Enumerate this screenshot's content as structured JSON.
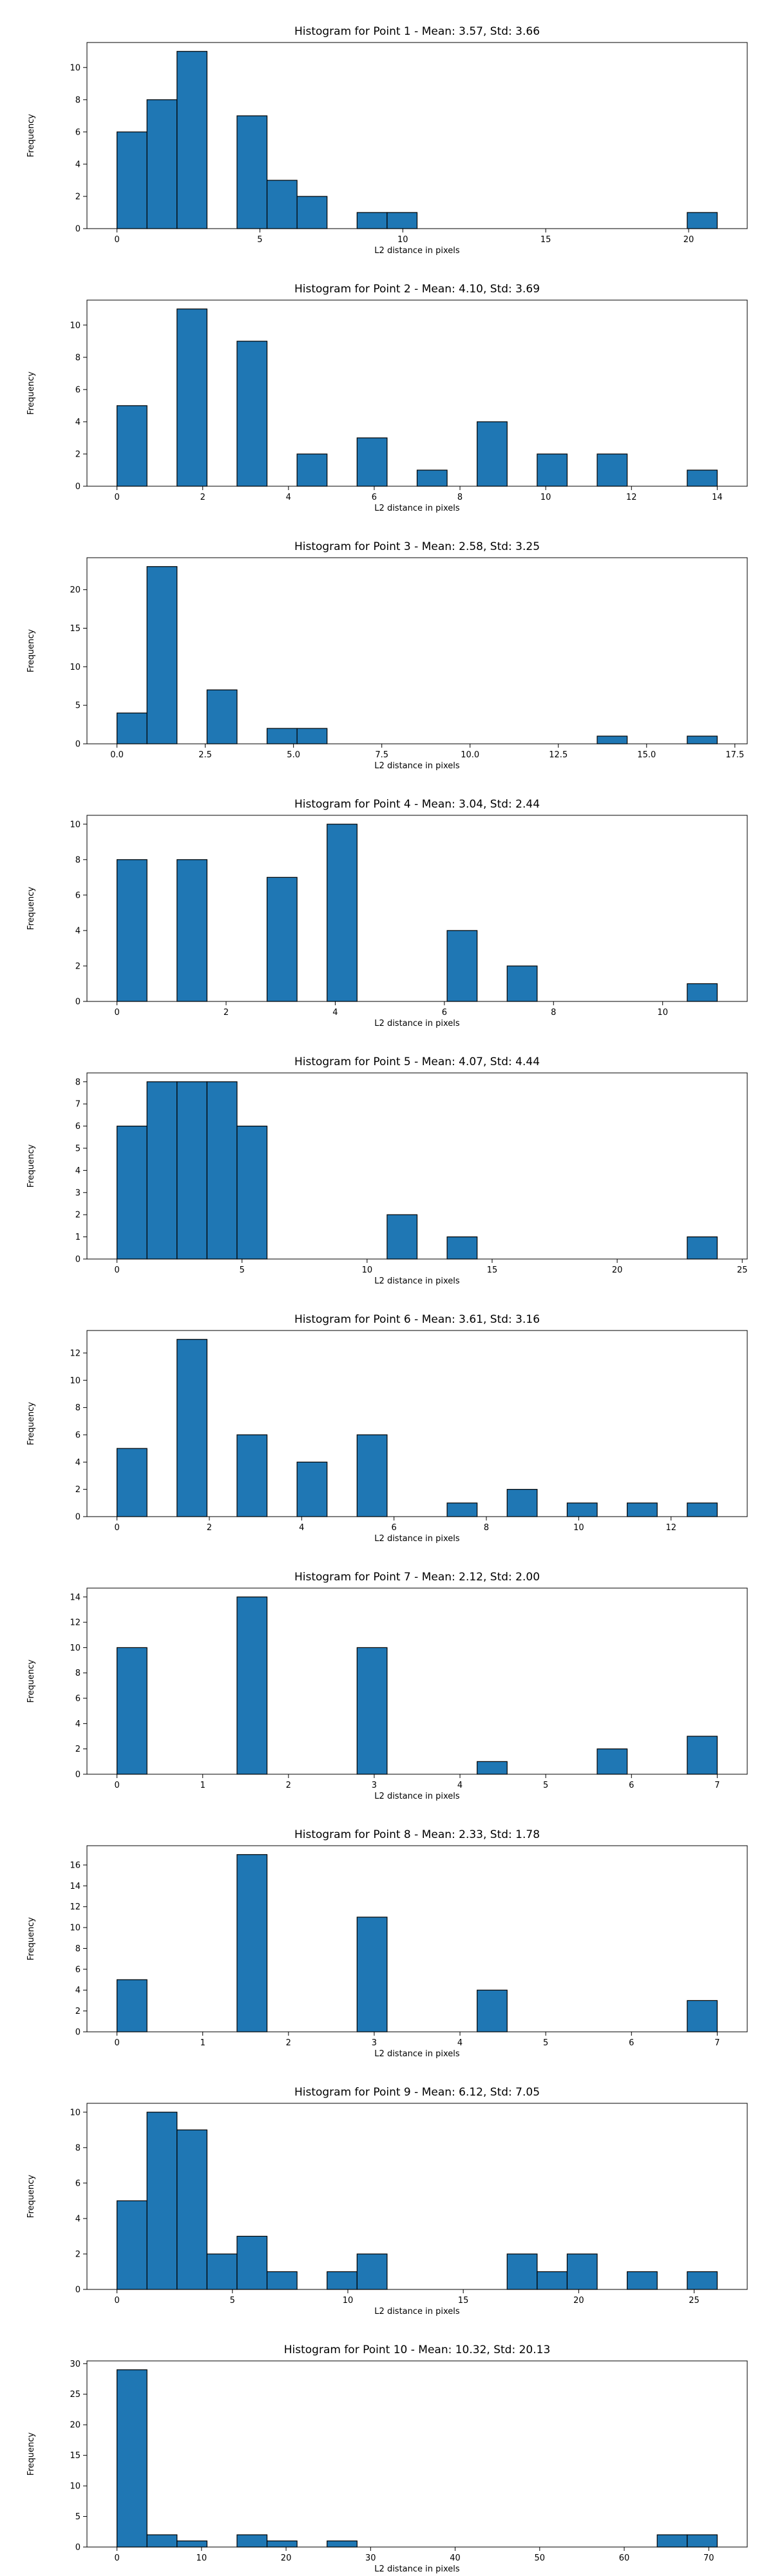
{
  "chart_data": [
    {
      "type": "bar",
      "title": "Histogram for Point 1 - Mean: 3.57, Std: 3.66",
      "xlabel": "L2 distance in pixels",
      "ylabel": "Frequency",
      "bar_color": "#1f77b4",
      "edge_color": "#000000",
      "xlim": [
        -1.05,
        22.05
      ],
      "ylim": [
        0,
        11.55
      ],
      "xticks": [
        0,
        5,
        10,
        15,
        20
      ],
      "xtick_labels": [
        "0",
        "5",
        "10",
        "15",
        "20"
      ],
      "yticks": [
        0,
        2,
        4,
        6,
        8,
        10
      ],
      "ytick_labels": [
        "0",
        "2",
        "4",
        "6",
        "8",
        "10"
      ],
      "bin_edges": [
        0,
        1.05,
        2.1,
        3.15,
        4.2,
        5.25,
        6.3,
        7.35,
        8.4,
        9.45,
        10.5,
        11.55,
        12.6,
        13.65,
        14.7,
        15.75,
        16.8,
        17.85,
        18.9,
        19.95,
        21.0
      ],
      "counts": [
        6,
        8,
        11,
        0,
        7,
        3,
        2,
        0,
        1,
        1,
        0,
        0,
        0,
        0,
        0,
        0,
        0,
        0,
        0,
        1
      ]
    },
    {
      "type": "bar",
      "title": "Histogram for Point 2 - Mean: 4.10, Std: 3.69",
      "xlabel": "L2 distance in pixels",
      "ylabel": "Frequency",
      "bar_color": "#1f77b4",
      "edge_color": "#000000",
      "xlim": [
        -0.7,
        14.7
      ],
      "ylim": [
        0,
        11.55
      ],
      "xticks": [
        0,
        2,
        4,
        6,
        8,
        10,
        12,
        14
      ],
      "xtick_labels": [
        "0",
        "2",
        "4",
        "6",
        "8",
        "10",
        "12",
        "14"
      ],
      "yticks": [
        0,
        2,
        4,
        6,
        8,
        10
      ],
      "ytick_labels": [
        "0",
        "2",
        "4",
        "6",
        "8",
        "10"
      ],
      "bin_edges": [
        0,
        0.7,
        1.4,
        2.1,
        2.8,
        3.5,
        4.2,
        4.9,
        5.6,
        6.3,
        7.0,
        7.7,
        8.4,
        9.1,
        9.8,
        10.5,
        11.2,
        11.9,
        12.6,
        13.3,
        14.0
      ],
      "counts": [
        5,
        0,
        11,
        0,
        9,
        0,
        2,
        0,
        3,
        0,
        1,
        0,
        4,
        0,
        2,
        0,
        2,
        0,
        0,
        1
      ]
    },
    {
      "type": "bar",
      "title": "Histogram for Point 3 - Mean: 2.58, Std: 3.25",
      "xlabel": "L2 distance in pixels",
      "ylabel": "Frequency",
      "bar_color": "#1f77b4",
      "edge_color": "#000000",
      "xlim": [
        -0.85,
        17.85
      ],
      "ylim": [
        0,
        24.15
      ],
      "xticks": [
        0,
        2.5,
        5,
        7.5,
        10,
        12.5,
        15,
        17.5
      ],
      "xtick_labels": [
        "0.0",
        "2.5",
        "5.0",
        "7.5",
        "10.0",
        "12.5",
        "15.0",
        "17.5"
      ],
      "yticks": [
        0,
        5,
        10,
        15,
        20
      ],
      "ytick_labels": [
        "0",
        "5",
        "10",
        "15",
        "20"
      ],
      "bin_edges": [
        0,
        0.85,
        1.7,
        2.55,
        3.4,
        4.25,
        5.1,
        5.95,
        6.8,
        7.65,
        8.5,
        9.35,
        10.2,
        11.05,
        11.9,
        12.75,
        13.6,
        14.45,
        15.3,
        16.15,
        17.0
      ],
      "counts": [
        4,
        23,
        0,
        7,
        0,
        2,
        2,
        0,
        0,
        0,
        0,
        0,
        0,
        0,
        0,
        0,
        1,
        0,
        0,
        1
      ]
    },
    {
      "type": "bar",
      "title": "Histogram for Point 4 - Mean: 3.04, Std: 2.44",
      "xlabel": "L2 distance in pixels",
      "ylabel": "Frequency",
      "bar_color": "#1f77b4",
      "edge_color": "#000000",
      "xlim": [
        -0.55,
        11.55
      ],
      "ylim": [
        0,
        10.5
      ],
      "xticks": [
        0,
        2,
        4,
        6,
        8,
        10
      ],
      "xtick_labels": [
        "0",
        "2",
        "4",
        "6",
        "8",
        "10"
      ],
      "yticks": [
        0,
        2,
        4,
        6,
        8,
        10
      ],
      "ytick_labels": [
        "0",
        "2",
        "4",
        "6",
        "8",
        "10"
      ],
      "bin_edges": [
        0,
        0.55,
        1.1,
        1.65,
        2.2,
        2.75,
        3.3,
        3.85,
        4.4,
        4.95,
        5.5,
        6.05,
        6.6,
        7.15,
        7.7,
        8.25,
        8.8,
        9.35,
        9.9,
        10.45,
        11.0
      ],
      "counts": [
        8,
        0,
        8,
        0,
        0,
        7,
        0,
        10,
        0,
        0,
        0,
        4,
        0,
        2,
        0,
        0,
        0,
        0,
        0,
        1
      ]
    },
    {
      "type": "bar",
      "title": "Histogram for Point 5 - Mean: 4.07, Std: 4.44",
      "xlabel": "L2 distance in pixels",
      "ylabel": "Frequency",
      "bar_color": "#1f77b4",
      "edge_color": "#000000",
      "xlim": [
        -1.2,
        25.2
      ],
      "ylim": [
        0,
        8.4
      ],
      "xticks": [
        0,
        5,
        10,
        15,
        20,
        25
      ],
      "xtick_labels": [
        "0",
        "5",
        "10",
        "15",
        "20",
        "25"
      ],
      "yticks": [
        0,
        1,
        2,
        3,
        4,
        5,
        6,
        7,
        8
      ],
      "ytick_labels": [
        "0",
        "1",
        "2",
        "3",
        "4",
        "5",
        "6",
        "7",
        "8"
      ],
      "bin_edges": [
        0,
        1.2,
        2.4,
        3.6,
        4.8,
        6.0,
        7.2,
        8.4,
        9.6,
        10.8,
        12.0,
        13.2,
        14.4,
        15.6,
        16.8,
        18.0,
        19.2,
        20.4,
        21.6,
        22.8,
        24.0
      ],
      "counts": [
        6,
        8,
        8,
        8,
        6,
        0,
        0,
        0,
        0,
        2,
        0,
        1,
        0,
        0,
        0,
        0,
        0,
        0,
        0,
        1
      ]
    },
    {
      "type": "bar",
      "title": "Histogram for Point 6 - Mean: 3.61, Std: 3.16",
      "xlabel": "L2 distance in pixels",
      "ylabel": "Frequency",
      "bar_color": "#1f77b4",
      "edge_color": "#000000",
      "xlim": [
        -0.65,
        13.65
      ],
      "ylim": [
        0,
        13.65
      ],
      "xticks": [
        0,
        2,
        4,
        6,
        8,
        10,
        12
      ],
      "xtick_labels": [
        "0",
        "2",
        "4",
        "6",
        "8",
        "10",
        "12"
      ],
      "yticks": [
        0,
        2,
        4,
        6,
        8,
        10,
        12
      ],
      "ytick_labels": [
        "0",
        "2",
        "4",
        "6",
        "8",
        "10",
        "12"
      ],
      "bin_edges": [
        0,
        0.65,
        1.3,
        1.95,
        2.6,
        3.25,
        3.9,
        4.55,
        5.2,
        5.85,
        6.5,
        7.15,
        7.8,
        8.45,
        9.1,
        9.75,
        10.4,
        11.05,
        11.7,
        12.35,
        13.0
      ],
      "counts": [
        5,
        0,
        13,
        0,
        6,
        0,
        4,
        0,
        6,
        0,
        0,
        1,
        0,
        2,
        0,
        1,
        0,
        1,
        0,
        1
      ]
    },
    {
      "type": "bar",
      "title": "Histogram for Point 7 - Mean: 2.12, Std: 2.00",
      "xlabel": "L2 distance in pixels",
      "ylabel": "Frequency",
      "bar_color": "#1f77b4",
      "edge_color": "#000000",
      "xlim": [
        -0.35,
        7.35
      ],
      "ylim": [
        0,
        14.7
      ],
      "xticks": [
        0,
        1,
        2,
        3,
        4,
        5,
        6,
        7
      ],
      "xtick_labels": [
        "0",
        "1",
        "2",
        "3",
        "4",
        "5",
        "6",
        "7"
      ],
      "yticks": [
        0,
        2,
        4,
        6,
        8,
        10,
        12,
        14
      ],
      "ytick_labels": [
        "0",
        "2",
        "4",
        "6",
        "8",
        "10",
        "12",
        "14"
      ],
      "bin_edges": [
        0,
        0.35,
        0.7,
        1.05,
        1.4,
        1.75,
        2.1,
        2.45,
        2.8,
        3.15,
        3.5,
        3.85,
        4.2,
        4.55,
        4.9,
        5.25,
        5.6,
        5.95,
        6.3,
        6.65,
        7.0
      ],
      "counts": [
        10,
        0,
        0,
        0,
        14,
        0,
        0,
        0,
        10,
        0,
        0,
        0,
        1,
        0,
        0,
        0,
        2,
        0,
        0,
        3
      ]
    },
    {
      "type": "bar",
      "title": "Histogram for Point 8 - Mean: 2.33, Std: 1.78",
      "xlabel": "L2 distance in pixels",
      "ylabel": "Frequency",
      "bar_color": "#1f77b4",
      "edge_color": "#000000",
      "xlim": [
        -0.35,
        7.35
      ],
      "ylim": [
        0,
        17.85
      ],
      "xticks": [
        0,
        1,
        2,
        3,
        4,
        5,
        6,
        7
      ],
      "xtick_labels": [
        "0",
        "1",
        "2",
        "3",
        "4",
        "5",
        "6",
        "7"
      ],
      "yticks": [
        0,
        2,
        4,
        6,
        8,
        10,
        12,
        14,
        16
      ],
      "ytick_labels": [
        "0",
        "2",
        "4",
        "6",
        "8",
        "10",
        "12",
        "14",
        "16"
      ],
      "bin_edges": [
        0,
        0.35,
        0.7,
        1.05,
        1.4,
        1.75,
        2.1,
        2.45,
        2.8,
        3.15,
        3.5,
        3.85,
        4.2,
        4.55,
        4.9,
        5.25,
        5.6,
        5.95,
        6.3,
        6.65,
        7.0
      ],
      "counts": [
        5,
        0,
        0,
        0,
        17,
        0,
        0,
        0,
        11,
        0,
        0,
        0,
        4,
        0,
        0,
        0,
        0,
        0,
        0,
        3
      ]
    },
    {
      "type": "bar",
      "title": "Histogram for Point 9 - Mean: 6.12, Std: 7.05",
      "xlabel": "L2 distance in pixels",
      "ylabel": "Frequency",
      "bar_color": "#1f77b4",
      "edge_color": "#000000",
      "xlim": [
        -1.3,
        27.3
      ],
      "ylim": [
        0,
        10.5
      ],
      "xticks": [
        0,
        5,
        10,
        15,
        20,
        25
      ],
      "xtick_labels": [
        "0",
        "5",
        "10",
        "15",
        "20",
        "25"
      ],
      "yticks": [
        0,
        2,
        4,
        6,
        8,
        10
      ],
      "ytick_labels": [
        "0",
        "2",
        "4",
        "6",
        "8",
        "10"
      ],
      "bin_edges": [
        0,
        1.3,
        2.6,
        3.9,
        5.2,
        6.5,
        7.8,
        9.1,
        10.4,
        11.7,
        13.0,
        14.3,
        15.6,
        16.9,
        18.2,
        19.5,
        20.8,
        22.1,
        23.4,
        24.7,
        26.0
      ],
      "counts": [
        5,
        10,
        9,
        2,
        3,
        1,
        0,
        1,
        2,
        0,
        0,
        0,
        0,
        2,
        1,
        2,
        0,
        1,
        0,
        1
      ]
    },
    {
      "type": "bar",
      "title": "Histogram for Point 10 - Mean: 10.32, Std: 20.13",
      "xlabel": "L2 distance in pixels",
      "ylabel": "Frequency",
      "bar_color": "#1f77b4",
      "edge_color": "#000000",
      "xlim": [
        -3.55,
        74.55
      ],
      "ylim": [
        0,
        30.45
      ],
      "xticks": [
        0,
        10,
        20,
        30,
        40,
        50,
        60,
        70
      ],
      "xtick_labels": [
        "0",
        "10",
        "20",
        "30",
        "40",
        "50",
        "60",
        "70"
      ],
      "yticks": [
        0,
        5,
        10,
        15,
        20,
        25,
        30
      ],
      "ytick_labels": [
        "0",
        "5",
        "10",
        "15",
        "20",
        "25",
        "30"
      ],
      "bin_edges": [
        0,
        3.55,
        7.1,
        10.65,
        14.2,
        17.75,
        21.3,
        24.85,
        28.4,
        31.95,
        35.5,
        39.05,
        42.6,
        46.15,
        49.7,
        53.25,
        56.8,
        60.35,
        63.9,
        67.45,
        71.0
      ],
      "counts": [
        29,
        2,
        1,
        0,
        2,
        1,
        0,
        1,
        0,
        0,
        0,
        0,
        0,
        0,
        0,
        0,
        0,
        0,
        2,
        2
      ]
    }
  ]
}
